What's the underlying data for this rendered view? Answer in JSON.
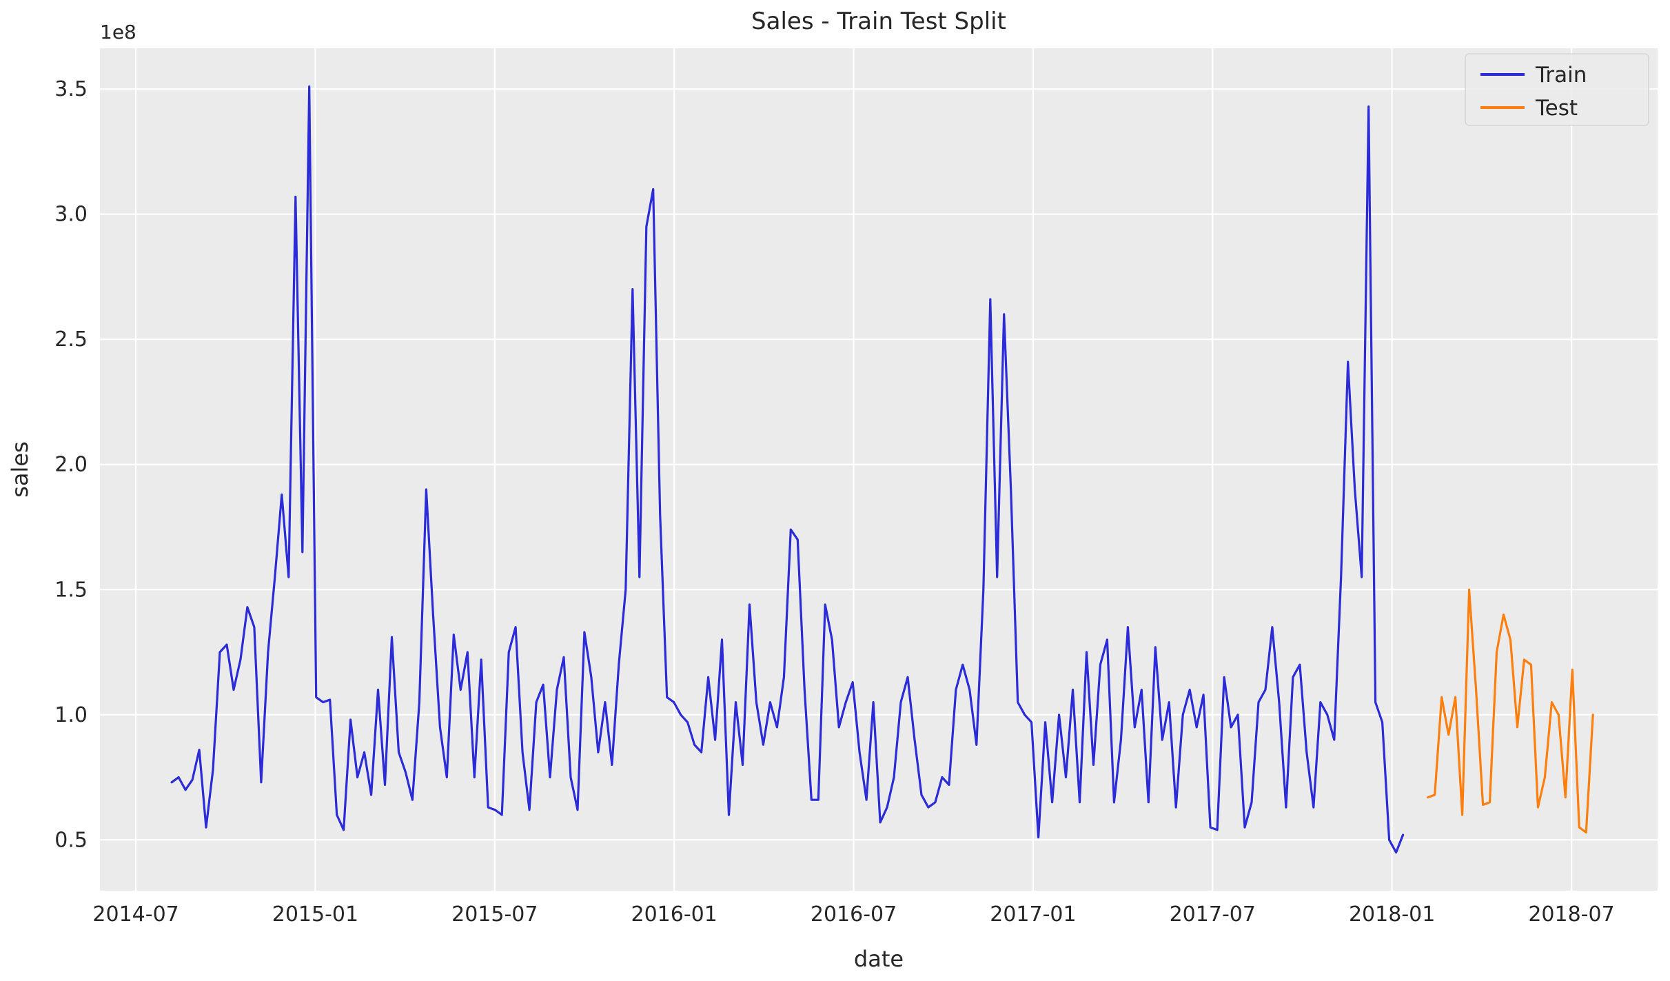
{
  "figure": {
    "title": "Sales - Train Test Split",
    "xlabel": "date",
    "ylabel": "sales",
    "offset_text": "1e8"
  },
  "legend": {
    "position": "upper right",
    "entries": [
      {
        "label": "Train",
        "color": "#2b2bd8"
      },
      {
        "label": "Test",
        "color": "#ff7f0e"
      }
    ]
  },
  "colors": {
    "axes_background": "#ebebeb",
    "grid": "#ffffff",
    "text": "#262626",
    "train_line": "#2b2bd8",
    "test_line": "#ff7f0e"
  },
  "chart_data": {
    "type": "line",
    "title": "Sales - Train Test Split",
    "xlabel": "date",
    "ylabel": "sales",
    "y_unit": "1e8",
    "grid": true,
    "legend_position": "upper right",
    "xlim": [
      2014.4,
      2018.74
    ],
    "ylim": [
      0.297,
      3.663
    ],
    "xticks": [
      {
        "value": 2014.5,
        "label": "2014-07"
      },
      {
        "value": 2015.0,
        "label": "2015-01"
      },
      {
        "value": 2015.5,
        "label": "2015-07"
      },
      {
        "value": 2016.0,
        "label": "2016-01"
      },
      {
        "value": 2016.5,
        "label": "2016-07"
      },
      {
        "value": 2017.0,
        "label": "2017-01"
      },
      {
        "value": 2017.5,
        "label": "2017-07"
      },
      {
        "value": 2018.0,
        "label": "2018-01"
      },
      {
        "value": 2018.5,
        "label": "2018-07"
      }
    ],
    "yticks": [
      {
        "value": 0.5,
        "label": "0.5"
      },
      {
        "value": 1.0,
        "label": "1.0"
      },
      {
        "value": 1.5,
        "label": "1.5"
      },
      {
        "value": 2.0,
        "label": "2.0"
      },
      {
        "value": 2.5,
        "label": "2.5"
      },
      {
        "value": 3.0,
        "label": "3.0"
      },
      {
        "value": 3.5,
        "label": "3.5"
      }
    ],
    "series": [
      {
        "name": "Train",
        "color": "#2b2bd8",
        "x_start": 2014.6,
        "x_step": 0.019165,
        "values": [
          0.73,
          0.75,
          0.7,
          0.74,
          0.86,
          0.55,
          0.78,
          1.25,
          1.28,
          1.1,
          1.22,
          1.43,
          1.35,
          0.73,
          1.25,
          1.55,
          1.88,
          1.55,
          3.07,
          1.65,
          3.51,
          1.07,
          1.05,
          1.06,
          0.6,
          0.54,
          0.98,
          0.75,
          0.85,
          0.68,
          1.1,
          0.72,
          1.31,
          0.85,
          0.77,
          0.66,
          1.05,
          1.9,
          1.4,
          0.95,
          0.75,
          1.32,
          1.1,
          1.25,
          0.75,
          1.22,
          0.63,
          0.62,
          0.6,
          1.25,
          1.35,
          0.85,
          0.62,
          1.05,
          1.12,
          0.75,
          1.1,
          1.23,
          0.75,
          0.62,
          1.33,
          1.15,
          0.85,
          1.05,
          0.8,
          1.2,
          1.5,
          2.7,
          1.55,
          2.95,
          3.1,
          1.8,
          1.07,
          1.05,
          1.0,
          0.97,
          0.88,
          0.85,
          1.15,
          0.9,
          1.3,
          0.6,
          1.05,
          0.8,
          1.44,
          1.05,
          0.88,
          1.05,
          0.95,
          1.15,
          1.74,
          1.7,
          1.1,
          0.66,
          0.66,
          1.44,
          1.3,
          0.95,
          1.05,
          1.13,
          0.85,
          0.66,
          1.05,
          0.57,
          0.63,
          0.75,
          1.05,
          1.15,
          0.9,
          0.68,
          0.63,
          0.65,
          0.75,
          0.72,
          1.1,
          1.2,
          1.1,
          0.88,
          1.5,
          2.66,
          1.55,
          2.6,
          1.9,
          1.05,
          1.0,
          0.97,
          0.51,
          0.97,
          0.65,
          1.0,
          0.75,
          1.1,
          0.65,
          1.25,
          0.8,
          1.2,
          1.3,
          0.65,
          0.9,
          1.35,
          0.95,
          1.1,
          0.65,
          1.27,
          0.9,
          1.05,
          0.63,
          1.0,
          1.1,
          0.95,
          1.08,
          0.55,
          0.54,
          1.15,
          0.95,
          1.0,
          0.55,
          0.65,
          1.05,
          1.1,
          1.35,
          1.05,
          0.63,
          1.15,
          1.2,
          0.85,
          0.63,
          1.05,
          1.0,
          0.9,
          1.55,
          2.41,
          1.9,
          1.55,
          3.43,
          1.05,
          0.97,
          0.5,
          0.45,
          0.52
        ]
      },
      {
        "name": "Test",
        "color": "#ff7f0e",
        "x_start": 2018.1,
        "x_step": 0.019165,
        "values": [
          0.67,
          0.68,
          1.07,
          0.92,
          1.07,
          0.6,
          1.5,
          1.1,
          0.64,
          0.65,
          1.25,
          1.4,
          1.3,
          0.95,
          1.22,
          1.2,
          0.63,
          0.75,
          1.05,
          1.0,
          0.67,
          1.18,
          0.55,
          0.53,
          1.0
        ]
      }
    ]
  }
}
